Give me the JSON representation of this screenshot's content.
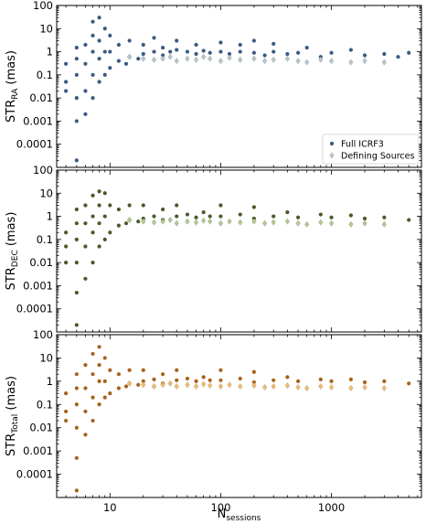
{
  "chart_data": [
    {
      "type": "scatter",
      "scale": {
        "x": "log",
        "y": "log"
      },
      "ylabel": "STR",
      "ylabel_sub": "RA",
      "ylabel_unit": " (mas)",
      "xlim": [
        3.3,
        6500
      ],
      "ylim": [
        1e-05,
        100
      ],
      "yticks": [
        100,
        10,
        1,
        0.1,
        0.01,
        0.001,
        0.0001
      ],
      "yticklabels": [
        "100",
        "10",
        "1",
        "0.1",
        "0.01",
        "0.001",
        "0.0001"
      ],
      "legend": {
        "position": "lower-right",
        "entries": [
          "Full ICRF3",
          "Defining Sources"
        ]
      },
      "series": [
        {
          "name": "Full ICRF3",
          "color": "#3a5a82",
          "marker": "circle",
          "x": [
            4,
            4,
            4,
            5,
            5,
            5,
            5,
            5,
            5,
            6,
            6,
            6,
            6,
            7,
            7,
            7,
            7,
            7,
            8,
            8,
            8,
            8,
            9,
            9,
            9,
            10,
            10,
            10,
            12,
            12,
            14,
            15,
            15,
            18,
            20,
            20,
            25,
            25,
            30,
            30,
            35,
            40,
            40,
            50,
            60,
            60,
            70,
            80,
            100,
            100,
            120,
            150,
            150,
            200,
            200,
            250,
            300,
            300,
            400,
            500,
            600,
            800,
            1000,
            1500,
            2000,
            3000,
            4000,
            5000
          ],
          "y": [
            0.3,
            0.05,
            0.02,
            2e-05,
            0.001,
            0.01,
            0.1,
            0.5,
            1.5,
            0.002,
            0.02,
            0.3,
            2,
            0.01,
            0.1,
            1,
            5,
            20,
            0.05,
            0.5,
            3,
            30,
            0.1,
            1,
            10,
            0.2,
            1,
            5,
            0.4,
            2,
            0.3,
            0.6,
            3,
            0.5,
            0.8,
            2,
            1,
            4,
            0.7,
            1.5,
            1,
            1.2,
            3,
            1,
            0.8,
            2,
            1.1,
            0.9,
            1,
            2.5,
            0.8,
            1,
            2,
            0.9,
            3,
            0.7,
            1,
            2.2,
            0.8,
            0.9,
            1.5,
            0.6,
            0.9,
            1.2,
            0.7,
            0.8,
            0.6,
            0.9
          ]
        },
        {
          "name": "Defining Sources",
          "color": "#b8c7cc",
          "marker": "diamond",
          "x": [
            15,
            20,
            25,
            30,
            35,
            40,
            50,
            60,
            70,
            80,
            100,
            120,
            150,
            200,
            250,
            300,
            400,
            500,
            600,
            800,
            1000,
            1500,
            2000,
            3000
          ],
          "y": [
            0.6,
            0.5,
            0.45,
            0.5,
            0.6,
            0.4,
            0.5,
            0.45,
            0.6,
            0.5,
            0.4,
            0.55,
            0.45,
            0.5,
            0.4,
            0.45,
            0.5,
            0.4,
            0.35,
            0.45,
            0.4,
            0.35,
            0.4,
            0.35
          ]
        }
      ]
    },
    {
      "type": "scatter",
      "scale": {
        "x": "log",
        "y": "log"
      },
      "ylabel": "STR",
      "ylabel_sub": "DEC",
      "ylabel_unit": " (mas)",
      "xlim": [
        3.3,
        6500
      ],
      "ylim": [
        1e-05,
        100
      ],
      "yticks": [
        100,
        10,
        1,
        0.1,
        0.01,
        0.001,
        0.0001
      ],
      "yticklabels": [
        "100",
        "10",
        "1",
        "0.1",
        "0.01",
        "0.001",
        "0.0001"
      ],
      "series": [
        {
          "name": "Full ICRF3",
          "color": "#4a5a2a",
          "marker": "circle",
          "x": [
            4,
            4,
            4,
            5,
            5,
            5,
            5,
            5,
            5,
            6,
            6,
            6,
            6,
            7,
            7,
            7,
            7,
            8,
            8,
            8,
            8,
            9,
            9,
            9,
            10,
            10,
            12,
            12,
            14,
            15,
            15,
            18,
            20,
            20,
            25,
            30,
            30,
            40,
            40,
            50,
            60,
            70,
            80,
            100,
            100,
            150,
            200,
            200,
            300,
            400,
            500,
            800,
            1000,
            1500,
            2000,
            3000,
            5000
          ],
          "y": [
            0.2,
            0.05,
            0.01,
            2e-05,
            0.0005,
            0.01,
            0.1,
            0.5,
            2,
            0.002,
            0.05,
            0.5,
            3,
            0.01,
            0.2,
            1,
            8,
            0.05,
            0.5,
            3,
            12,
            0.1,
            1,
            10,
            0.2,
            3,
            0.4,
            2,
            0.5,
            0.7,
            3,
            0.6,
            0.8,
            3,
            1,
            0.7,
            2,
            1,
            3,
            1.2,
            0.9,
            1.5,
            1,
            1,
            3,
            1.2,
            0.8,
            2.5,
            1,
            1.5,
            0.9,
            1.2,
            0.9,
            1.1,
            0.8,
            0.9,
            0.7
          ]
        },
        {
          "name": "Defining Sources",
          "color": "#b4c98e",
          "marker": "diamond",
          "x": [
            15,
            20,
            25,
            30,
            35,
            40,
            50,
            60,
            70,
            80,
            100,
            120,
            150,
            200,
            250,
            300,
            400,
            500,
            600,
            800,
            1000,
            1500,
            2000,
            3000
          ],
          "y": [
            0.7,
            0.6,
            0.55,
            0.6,
            0.7,
            0.5,
            0.6,
            0.55,
            0.65,
            0.6,
            0.5,
            0.6,
            0.55,
            0.6,
            0.5,
            0.55,
            0.6,
            0.5,
            0.45,
            0.55,
            0.5,
            0.45,
            0.5,
            0.45
          ]
        }
      ]
    },
    {
      "type": "scatter",
      "scale": {
        "x": "log",
        "y": "log"
      },
      "ylabel": "STR",
      "ylabel_sub": "Total",
      "ylabel_unit": " (mas)",
      "xlabel": "N",
      "xlabel_sub": "sessions",
      "xlim": [
        3.3,
        6500
      ],
      "ylim": [
        1e-05,
        100
      ],
      "yticks": [
        100,
        10,
        1,
        0.1,
        0.01,
        0.001,
        0.0001
      ],
      "yticklabels": [
        "100",
        "10",
        "1",
        "0.1",
        "0.01",
        "0.001",
        "0.0001"
      ],
      "xticks": [
        10,
        100,
        1000
      ],
      "xticklabels": [
        "10",
        "100",
        "1000"
      ],
      "series": [
        {
          "name": "Full ICRF3",
          "color": "#a8621c",
          "marker": "circle",
          "x": [
            4,
            4,
            4,
            5,
            5,
            5,
            5,
            5,
            5,
            6,
            6,
            6,
            6,
            7,
            7,
            7,
            7,
            8,
            8,
            8,
            8,
            9,
            9,
            9,
            10,
            10,
            12,
            12,
            14,
            15,
            15,
            18,
            20,
            20,
            25,
            30,
            30,
            40,
            40,
            50,
            60,
            70,
            80,
            100,
            100,
            150,
            200,
            200,
            300,
            400,
            500,
            800,
            1000,
            1500,
            2000,
            3000,
            5000
          ],
          "y": [
            0.3,
            0.05,
            0.02,
            2e-05,
            0.0005,
            0.01,
            0.1,
            0.5,
            2,
            0.005,
            0.05,
            0.5,
            5,
            0.02,
            0.2,
            2,
            15,
            0.1,
            1,
            5,
            30,
            0.2,
            1,
            10,
            0.3,
            3,
            0.5,
            2,
            0.6,
            0.8,
            3,
            0.7,
            1,
            3,
            1.2,
            0.8,
            2,
            1.1,
            3,
            1.3,
            1,
            1.5,
            1.1,
            1.1,
            3,
            1.3,
            0.9,
            2.5,
            1.1,
            1.5,
            1,
            1.2,
            1,
            1.2,
            0.9,
            1,
            0.8
          ]
        },
        {
          "name": "Defining Sources",
          "color": "#f2bb6a",
          "marker": "diamond",
          "x": [
            15,
            20,
            25,
            30,
            35,
            40,
            50,
            60,
            70,
            80,
            100,
            120,
            150,
            200,
            250,
            300,
            400,
            500,
            600,
            800,
            1000,
            1500,
            2000,
            3000
          ],
          "y": [
            0.8,
            0.7,
            0.6,
            0.7,
            0.8,
            0.6,
            0.7,
            0.6,
            0.75,
            0.65,
            0.6,
            0.7,
            0.6,
            0.65,
            0.55,
            0.6,
            0.65,
            0.55,
            0.5,
            0.6,
            0.55,
            0.5,
            0.55,
            0.5
          ]
        }
      ]
    }
  ]
}
